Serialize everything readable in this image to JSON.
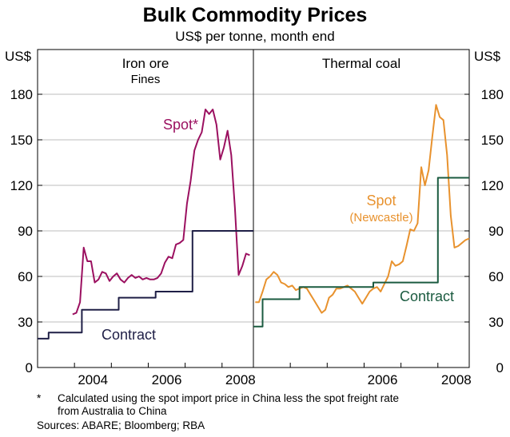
{
  "title": "Bulk Commodity Prices",
  "subtitle": "US$ per tonne, month end",
  "y_unit_left": "US$",
  "y_unit_right": "US$",
  "footnote_marker": "*",
  "footnote_line1": "Calculated using the spot import price in China less the spot freight rate",
  "footnote_line2": "from Australia to China",
  "sources": "Sources: ABARE; Bloomberg; RBA",
  "chart_data": [
    {
      "type": "line",
      "title": "Iron ore",
      "subtitle": "Fines",
      "ylim": [
        0,
        180
      ],
      "yticks": [
        0,
        30,
        60,
        90,
        120,
        150,
        180
      ],
      "xticks": [
        2004,
        2006,
        2008
      ],
      "xlim": [
        2003.0,
        2008.85
      ],
      "grid": true,
      "colors": {
        "spot": "#9b1060",
        "contract": "#1f1f46"
      },
      "series": [
        {
          "name": "Spot*",
          "x": [
            2003.95,
            2004.05,
            2004.15,
            2004.25,
            2004.35,
            2004.45,
            2004.55,
            2004.65,
            2004.75,
            2004.85,
            2004.95,
            2005.05,
            2005.15,
            2005.25,
            2005.35,
            2005.45,
            2005.55,
            2005.65,
            2005.75,
            2005.85,
            2005.95,
            2006.05,
            2006.15,
            2006.25,
            2006.35,
            2006.45,
            2006.55,
            2006.65,
            2006.75,
            2006.85,
            2006.95,
            2007.05,
            2007.15,
            2007.25,
            2007.35,
            2007.45,
            2007.55,
            2007.65,
            2007.75,
            2007.85,
            2007.95,
            2008.05,
            2008.15,
            2008.25,
            2008.35,
            2008.45,
            2008.55,
            2008.65,
            2008.75
          ],
          "values": [
            35,
            36,
            43,
            79,
            70,
            70,
            56,
            58,
            63,
            62,
            57,
            60,
            62,
            58,
            56,
            59,
            61,
            59,
            60,
            58,
            59,
            58,
            58,
            59,
            62,
            69,
            73,
            72,
            81,
            82,
            84,
            108,
            123,
            143,
            150,
            155,
            170,
            167,
            170,
            160,
            137,
            145,
            156,
            140,
            105,
            61,
            67,
            75,
            74
          ]
        },
        {
          "name": "Contract",
          "step": true,
          "x": [
            2003.0,
            2003.3,
            2003.3,
            2004.2,
            2004.2,
            2005.2,
            2005.2,
            2006.2,
            2006.2,
            2007.2,
            2007.2,
            2008.2,
            2008.2,
            2008.85
          ],
          "values": [
            19,
            19,
            23,
            23,
            38,
            38,
            46,
            46,
            50,
            50,
            90,
            90,
            90,
            90
          ]
        }
      ]
    },
    {
      "type": "line",
      "title": "Thermal coal",
      "ylim": [
        0,
        180
      ],
      "yticks": [
        0,
        30,
        60,
        90,
        120,
        150,
        180
      ],
      "xticks": [
        2006,
        2008
      ],
      "xlim": [
        2003.0,
        2008.85
      ],
      "grid": true,
      "colors": {
        "spot": "#e8922e",
        "contract": "#1b5b40"
      },
      "series": [
        {
          "name": "Spot",
          "label_sub": "(Newcastle)",
          "x": [
            2003.05,
            2003.15,
            2003.25,
            2003.35,
            2003.45,
            2003.55,
            2003.65,
            2003.75,
            2003.85,
            2003.95,
            2004.05,
            2004.15,
            2004.25,
            2004.35,
            2004.45,
            2004.55,
            2004.65,
            2004.75,
            2004.85,
            2004.95,
            2005.05,
            2005.15,
            2005.25,
            2005.35,
            2005.45,
            2005.55,
            2005.65,
            2005.75,
            2005.85,
            2005.95,
            2006.05,
            2006.15,
            2006.25,
            2006.35,
            2006.45,
            2006.55,
            2006.65,
            2006.75,
            2006.85,
            2006.95,
            2007.05,
            2007.15,
            2007.25,
            2007.35,
            2007.45,
            2007.55,
            2007.65,
            2007.75,
            2007.85,
            2007.95,
            2008.05,
            2008.15,
            2008.25,
            2008.35,
            2008.45,
            2008.55,
            2008.65,
            2008.75,
            2008.85
          ],
          "values": [
            43,
            43,
            50,
            58,
            60,
            63,
            61,
            56,
            55,
            53,
            54,
            51,
            52,
            53,
            52,
            48,
            44,
            40,
            36,
            38,
            46,
            48,
            52,
            52,
            53,
            54,
            52,
            50,
            46,
            42,
            46,
            50,
            52,
            53,
            50,
            55,
            60,
            70,
            67,
            68,
            70,
            80,
            91,
            90,
            95,
            132,
            120,
            130,
            152,
            173,
            165,
            163,
            140,
            100,
            79,
            80,
            82,
            84,
            85
          ],
          "_end": null
        },
        {
          "name": "Contract",
          "step": true,
          "x": [
            2003.0,
            2003.25,
            2003.25,
            2004.25,
            2004.25,
            2006.25,
            2006.25,
            2007.25,
            2007.25,
            2008.0,
            2008.0,
            2008.85
          ],
          "values": [
            27,
            27,
            45,
            45,
            53,
            53,
            56,
            56,
            56,
            56,
            125,
            125
          ]
        }
      ]
    }
  ]
}
